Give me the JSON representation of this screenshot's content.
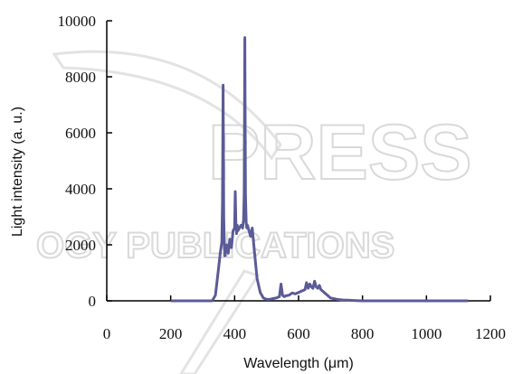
{
  "watermark": {
    "line1": "PRESS",
    "line2": "OGY PUBLICATIONS"
  },
  "chart_data": {
    "type": "line",
    "title": "",
    "xlabel": "Wavelength (μm)",
    "ylabel": "Light intensity (a. u.)",
    "xlim": [
      0,
      1200
    ],
    "ylim": [
      0,
      10000
    ],
    "xticks": [
      0,
      200,
      400,
      600,
      800,
      1000,
      1200
    ],
    "yticks": [
      0,
      2000,
      4000,
      6000,
      8000,
      10000
    ],
    "grid": false,
    "legend": "none",
    "line_color": "#5b5b98",
    "series": [
      {
        "x": [
          200,
          330,
          340,
          350,
          355,
          360,
          362,
          364,
          366,
          368,
          370,
          375,
          380,
          385,
          390,
          395,
          400,
          402,
          404,
          406,
          408,
          410,
          415,
          420,
          425,
          428,
          430,
          432,
          434,
          436,
          438,
          440,
          445,
          450,
          455,
          460,
          465,
          470,
          480,
          490,
          500,
          510,
          520,
          530,
          540,
          545,
          550,
          555,
          560,
          570,
          580,
          590,
          600,
          610,
          620,
          625,
          630,
          635,
          640,
          645,
          650,
          655,
          660,
          665,
          670,
          675,
          680,
          690,
          700,
          720,
          740,
          760,
          780,
          800,
          850,
          900,
          950,
          1000,
          1050,
          1100,
          1130
        ],
        "y": [
          0,
          0,
          200,
          1200,
          1700,
          2100,
          3500,
          7700,
          3000,
          1900,
          1600,
          2000,
          1700,
          2200,
          1900,
          2500,
          2600,
          3900,
          2800,
          2400,
          2700,
          2500,
          2600,
          2700,
          2600,
          2900,
          3800,
          9400,
          3800,
          2800,
          2600,
          2700,
          2500,
          2300,
          2600,
          2000,
          1400,
          800,
          300,
          100,
          50,
          50,
          80,
          100,
          150,
          600,
          200,
          150,
          180,
          200,
          280,
          250,
          300,
          350,
          400,
          650,
          450,
          600,
          500,
          450,
          700,
          500,
          450,
          550,
          400,
          350,
          300,
          200,
          100,
          50,
          30,
          20,
          10,
          0,
          0,
          0,
          0,
          0,
          0,
          0,
          0
        ]
      }
    ]
  }
}
